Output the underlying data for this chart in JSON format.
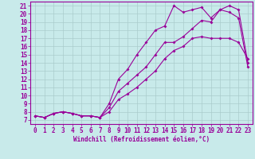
{
  "xlabel": "Windchill (Refroidissement éolien,°C)",
  "bg_color": "#c8eaea",
  "line_color": "#990099",
  "grid_color": "#aacccc",
  "xlim": [
    -0.5,
    23.5
  ],
  "ylim": [
    6.5,
    21.5
  ],
  "xticks": [
    0,
    1,
    2,
    3,
    4,
    5,
    6,
    7,
    8,
    9,
    10,
    11,
    12,
    13,
    14,
    15,
    16,
    17,
    18,
    19,
    20,
    21,
    22,
    23
  ],
  "yticks": [
    7,
    8,
    9,
    10,
    11,
    12,
    13,
    14,
    15,
    16,
    17,
    18,
    19,
    20,
    21
  ],
  "line1_x": [
    0,
    1,
    2,
    3,
    4,
    5,
    6,
    7,
    8,
    9,
    10,
    11,
    12,
    13,
    14,
    15,
    16,
    17,
    18,
    19,
    20,
    21,
    22,
    23
  ],
  "line1_y": [
    7.5,
    7.3,
    7.8,
    8.0,
    7.8,
    7.5,
    7.5,
    7.3,
    8.0,
    9.5,
    10.2,
    11.0,
    12.0,
    13.0,
    14.5,
    15.5,
    16.0,
    17.0,
    17.2,
    17.0,
    17.0,
    17.0,
    16.5,
    14.5
  ],
  "line2_x": [
    0,
    1,
    2,
    3,
    4,
    5,
    6,
    7,
    8,
    9,
    10,
    11,
    12,
    13,
    14,
    15,
    16,
    17,
    18,
    19,
    20,
    21,
    22,
    23
  ],
  "line2_y": [
    7.5,
    7.3,
    7.8,
    8.0,
    7.8,
    7.5,
    7.5,
    7.3,
    9.0,
    12.0,
    13.2,
    15.0,
    16.5,
    18.0,
    18.5,
    21.0,
    20.2,
    20.5,
    20.8,
    19.5,
    20.5,
    20.2,
    19.5,
    13.5
  ],
  "line3_x": [
    0,
    1,
    2,
    3,
    4,
    5,
    6,
    7,
    8,
    9,
    10,
    11,
    12,
    13,
    14,
    15,
    16,
    17,
    18,
    19,
    20,
    21,
    22,
    23
  ],
  "line3_y": [
    7.5,
    7.3,
    7.8,
    8.0,
    7.8,
    7.5,
    7.5,
    7.3,
    8.5,
    10.5,
    11.5,
    12.5,
    13.5,
    15.0,
    16.5,
    16.5,
    17.2,
    18.2,
    19.2,
    19.0,
    20.5,
    21.0,
    20.5,
    14.0
  ],
  "xlabel_fontsize": 5.5,
  "tick_fontsize": 5.5,
  "marker_size": 2.0,
  "line_width": 0.8
}
